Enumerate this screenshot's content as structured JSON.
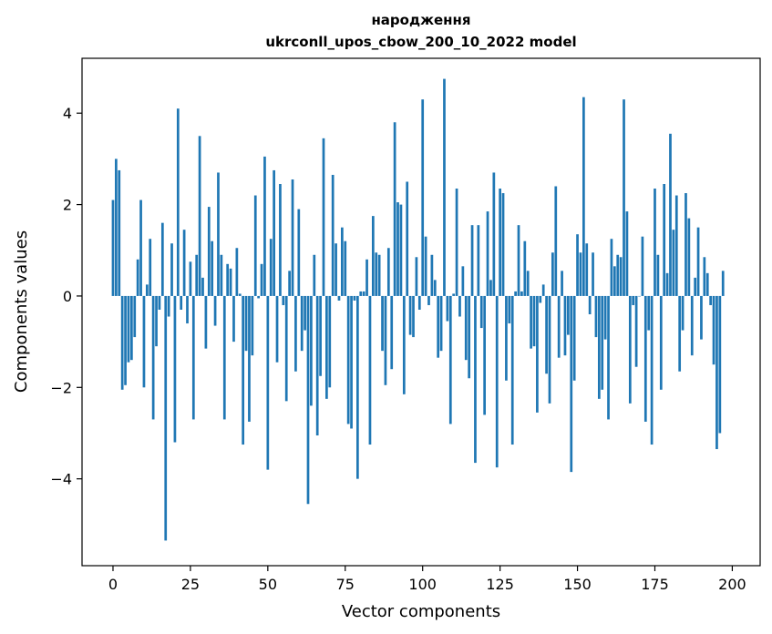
{
  "chart_data": {
    "type": "bar",
    "title_line1": "народження",
    "title_line2": "ukrconll_upos_cbow_200_10_2022 model",
    "xlabel": "Vector components",
    "ylabel": "Components values",
    "xlim": [
      -10,
      209
    ],
    "ylim": [
      -5.9,
      5.2
    ],
    "xticks": [
      0,
      25,
      50,
      75,
      100,
      125,
      150,
      175,
      200
    ],
    "xtick_labels": [
      "0",
      "25",
      "50",
      "75",
      "100",
      "125",
      "150",
      "175",
      "200"
    ],
    "yticks": [
      -4,
      -2,
      0,
      2,
      4
    ],
    "ytick_labels": [
      "−4",
      "−2",
      "0",
      "2",
      "4"
    ],
    "bar_color": "#1f77b4",
    "grid": false,
    "values": [
      2.1,
      3.0,
      2.75,
      -2.05,
      -1.95,
      -1.45,
      -1.4,
      -0.9,
      0.8,
      2.1,
      -2.0,
      0.25,
      1.25,
      -2.7,
      -1.1,
      -0.3,
      1.6,
      -5.35,
      -0.45,
      1.15,
      -3.2,
      4.1,
      -0.3,
      1.45,
      -0.6,
      0.75,
      -2.7,
      0.9,
      3.5,
      0.4,
      -1.15,
      1.95,
      1.2,
      -0.65,
      2.7,
      0.9,
      -2.7,
      0.7,
      0.6,
      -1.0,
      1.05,
      0.05,
      -3.25,
      -1.2,
      -2.75,
      -1.3,
      2.2,
      -0.05,
      0.7,
      3.05,
      -3.8,
      1.25,
      2.75,
      -1.45,
      2.45,
      -0.2,
      -2.3,
      0.55,
      2.55,
      -1.65,
      1.9,
      -1.2,
      -0.75,
      -4.55,
      -2.4,
      0.9,
      -3.05,
      -1.75,
      3.45,
      -2.25,
      -2.0,
      2.65,
      1.15,
      -0.1,
      1.5,
      1.2,
      -2.8,
      -2.9,
      -0.1,
      -4.0,
      0.1,
      0.1,
      0.8,
      -3.25,
      1.75,
      0.95,
      0.9,
      -1.2,
      -1.95,
      1.05,
      -1.6,
      3.8,
      2.05,
      2.0,
      -2.15,
      2.5,
      -0.85,
      -0.9,
      0.85,
      -0.3,
      4.3,
      1.3,
      -0.2,
      0.9,
      0.35,
      -1.35,
      -1.2,
      4.75,
      -0.55,
      -2.8,
      0.05,
      2.35,
      -0.45,
      0.65,
      -1.4,
      -1.8,
      1.55,
      -3.65,
      1.55,
      -0.7,
      -2.6,
      1.85,
      0.35,
      2.7,
      -3.75,
      2.35,
      2.25,
      -1.85,
      -0.6,
      -3.25,
      0.1,
      1.55,
      0.1,
      1.2,
      0.55,
      -1.15,
      -1.1,
      -2.55,
      -0.15,
      0.25,
      -1.7,
      -2.35,
      0.95,
      2.4,
      -1.35,
      0.55,
      -1.3,
      -0.85,
      -3.85,
      -1.85,
      1.35,
      0.95,
      4.35,
      1.15,
      -0.4,
      0.95,
      -0.9,
      -2.25,
      -2.05,
      -0.95,
      -2.7,
      1.25,
      0.65,
      0.9,
      0.85,
      4.3,
      1.85,
      -2.35,
      -0.2,
      -1.55,
      0.0,
      1.3,
      -2.75,
      -0.75,
      -3.25,
      2.35,
      0.9,
      -2.05,
      2.45,
      0.5,
      3.55,
      1.45,
      2.2,
      -1.65,
      -0.75,
      2.25,
      1.7,
      -1.3,
      0.4,
      1.5,
      -0.95,
      0.85,
      0.5,
      -0.2,
      -1.5,
      -3.35,
      -3.0,
      0.55
    ]
  }
}
